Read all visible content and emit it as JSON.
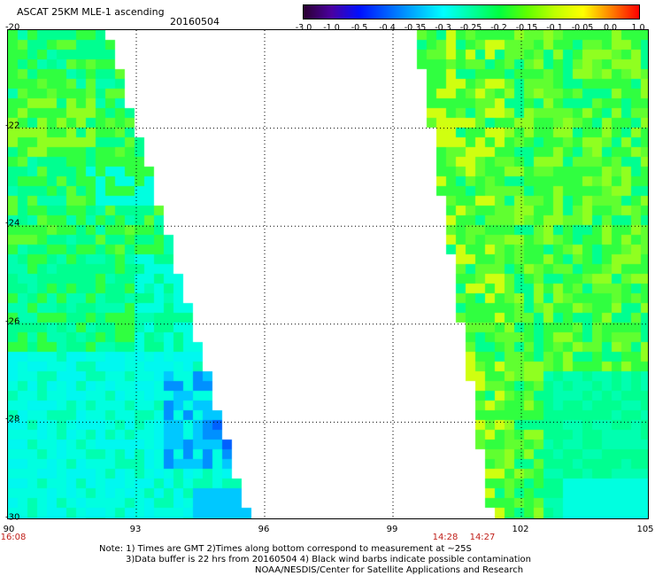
{
  "header": {
    "title": "ASCAT 25KM MLE-1 ascending",
    "date": "20160504"
  },
  "colorbar": {
    "labels": [
      "-3.0",
      "-1.0",
      "-0.5",
      "-0.4",
      "-0.35",
      "-0.3",
      "-0.25",
      "-0.2",
      "-0.15",
      "-0.1",
      "-0.05",
      "0.0",
      "1.0"
    ],
    "colors": [
      "#2a0030",
      "#4a00a0",
      "#0010ff",
      "#0060ff",
      "#00b0ff",
      "#00ffff",
      "#00ffa0",
      "#00ff40",
      "#60ff00",
      "#c0ff00",
      "#ffff00",
      "#ff8000",
      "#ff0000"
    ]
  },
  "map": {
    "lon_range": [
      90,
      105
    ],
    "lat_range": [
      -30,
      -20
    ],
    "x_ticks": [
      "90",
      "93",
      "96",
      "99",
      "102",
      "105"
    ],
    "y_ticks": [
      "-20",
      "-22",
      "-24",
      "-26",
      "-28",
      "-30"
    ]
  },
  "times": {
    "left": "16:08",
    "mid_a": "14:28",
    "mid_b": "14:27"
  },
  "notes": [
    "Note: 1) Times are GMT 2)Times along bottom correspond to measurement at ~25S",
    "3)Data buffer is 22 hrs from 20160504 4) Black wind barbs indicate possible contamination",
    "NOAA/NESDIS/Center for Satellite Applications and Research"
  ]
}
